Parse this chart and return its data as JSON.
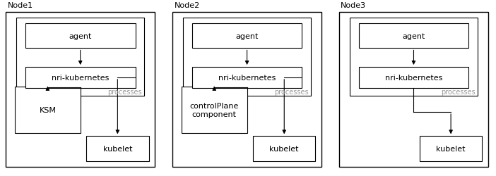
{
  "nodes": [
    "Node1",
    "Node2",
    "Node3"
  ],
  "bg_color": "#ffffff",
  "border_color": "#000000",
  "text_color": "#000000",
  "gray_color": "#999999",
  "font_size_node_label": 8,
  "font_size_box": 8,
  "font_size_processes": 7,
  "panels": [
    {
      "label": "Node1",
      "ox": 0.012,
      "oy": 0.05,
      "ow": 0.3,
      "oh": 0.88,
      "special": "KSM"
    },
    {
      "label": "Node2",
      "ox": 0.348,
      "oy": 0.05,
      "ow": 0.3,
      "oh": 0.88,
      "special": "controlPlane\ncomponent"
    },
    {
      "label": "Node3",
      "ox": 0.684,
      "oy": 0.05,
      "ow": 0.3,
      "oh": 0.88,
      "special": null
    }
  ]
}
